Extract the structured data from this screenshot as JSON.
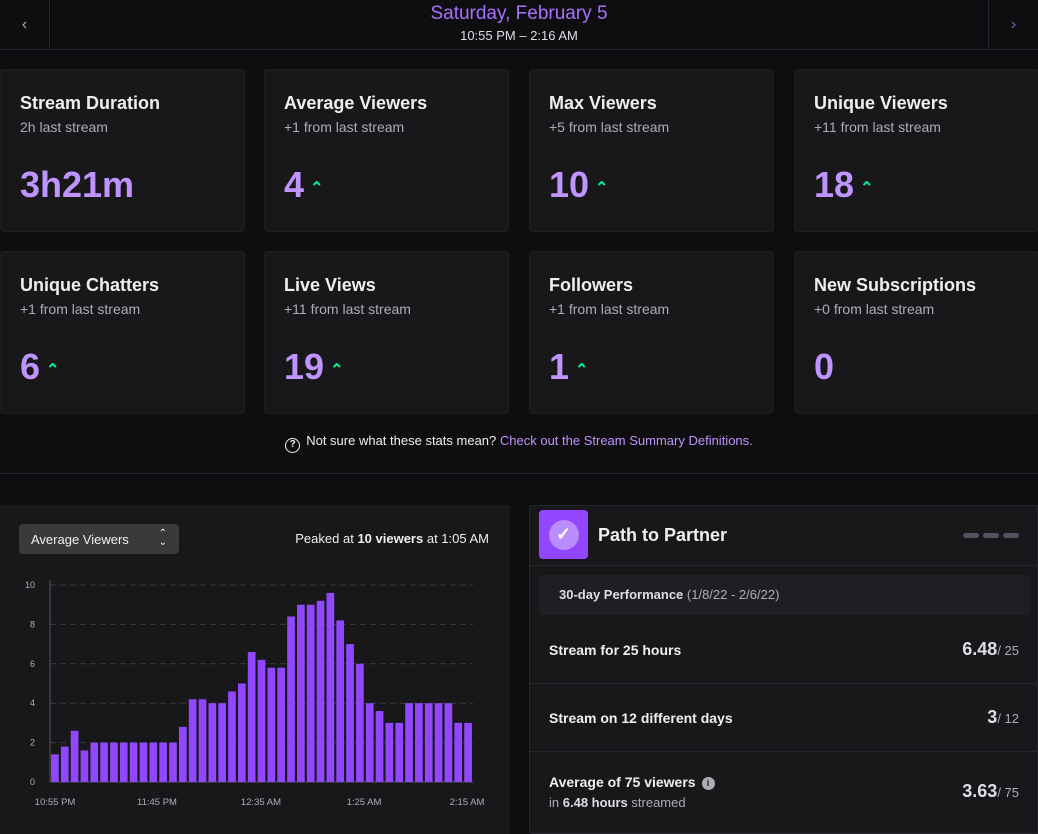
{
  "header": {
    "date": "Saturday, February 5",
    "time_range": "10:55 PM – 2:16 AM",
    "prev_icon": "chevron-left-icon",
    "next_icon": "chevron-right-icon"
  },
  "stats": [
    {
      "title": "Stream Duration",
      "sub": "2h last stream",
      "value": "3h21m",
      "up": false
    },
    {
      "title": "Average Viewers",
      "sub": "+1 from last stream",
      "value": "4",
      "up": true
    },
    {
      "title": "Max Viewers",
      "sub": "+5 from last stream",
      "value": "10",
      "up": true
    },
    {
      "title": "Unique Viewers",
      "sub": "+11 from last stream",
      "value": "18",
      "up": true
    },
    {
      "title": "Unique Chatters",
      "sub": "+1 from last stream",
      "value": "6",
      "up": true
    },
    {
      "title": "Live Views",
      "sub": "+11 from last stream",
      "value": "19",
      "up": true
    },
    {
      "title": "Followers",
      "sub": "+1 from last stream",
      "value": "1",
      "up": true
    },
    {
      "title": "New Subscriptions",
      "sub": "+0 from last stream",
      "value": "0",
      "up": false
    }
  ],
  "help": {
    "text": "Not sure what these stats mean?",
    "link": "Check out the Stream Summary Definitions."
  },
  "chart_panel": {
    "metric_select": "Average Viewers",
    "peak_prefix": "Peaked at",
    "peak_bold": "10 viewers",
    "peak_suffix": "at 1:05 AM"
  },
  "chart_data": {
    "type": "bar",
    "ylim": [
      0,
      10
    ],
    "y_ticks": [
      "0",
      "2",
      "4",
      "6",
      "8",
      "10"
    ],
    "x_tick_labels": [
      "10:55 PM",
      "11:45 PM",
      "12:35 AM",
      "1:25 AM",
      "2:15 AM"
    ],
    "values": [
      1.4,
      1.8,
      2.6,
      1.6,
      2.0,
      2.0,
      2.0,
      2.0,
      2.0,
      2.0,
      2.0,
      2.0,
      2.0,
      2.8,
      4.2,
      4.2,
      4.0,
      4.0,
      4.6,
      5.0,
      6.6,
      6.2,
      5.8,
      5.8,
      8.4,
      9.0,
      9.0,
      9.2,
      9.6,
      8.2,
      7.0,
      6.0,
      4.0,
      3.6,
      3.0,
      3.0,
      4.0,
      4.0,
      4.0,
      4.0,
      4.0,
      3.0,
      3.0
    ],
    "bar_color": "#9147ff",
    "grid": true
  },
  "partner": {
    "title": "Path to Partner",
    "badge_icon": "checkmark-icon",
    "perf_label": "30-day Performance",
    "perf_range": "(1/8/22 - 2/6/22)",
    "rows": [
      {
        "label": "Stream for 25 hours",
        "value": "6.48",
        "goal": "/ 25",
        "sub": ""
      },
      {
        "label": "Stream on 12 different days",
        "value": "3",
        "goal": "/ 12",
        "sub": ""
      },
      {
        "label": "Average of 75 viewers",
        "value": "3.63",
        "goal": "/ 75",
        "sub_prefix": "in",
        "sub_bold": "6.48 hours",
        "sub_suffix": "streamed"
      }
    ]
  },
  "colors": {
    "accent": "#bf94ff",
    "up": "#00f593",
    "link": "#bf94ff"
  }
}
